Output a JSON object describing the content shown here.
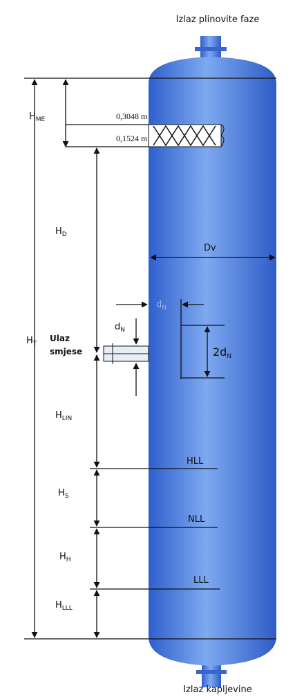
{
  "header": {
    "top_outlet": "Izlaz plinovite faze",
    "bottom_outlet": "Izlaz kapljevine"
  },
  "labels": {
    "h_me": {
      "main": "H",
      "sub": "ME"
    },
    "mesh_top": "0,3048 m",
    "mesh_bottom": "0,1524 m",
    "h_d": {
      "main": "H",
      "sub": "D"
    },
    "dv": "Dv",
    "dn_top": {
      "main": "d",
      "sub": "N"
    },
    "dn": {
      "main": "d",
      "sub": "N"
    },
    "two_dn": {
      "main": "2d",
      "sub": "N"
    },
    "h_t": {
      "main": "H",
      "sub": "T"
    },
    "inlet": [
      "Ulaz",
      "smjese"
    ],
    "h_lin": {
      "main": "H",
      "sub": "LIN"
    },
    "hll": "HLL",
    "h_s": {
      "main": "H",
      "sub": "S"
    },
    "nll": "NLL",
    "h_h": {
      "main": "H",
      "sub": "H"
    },
    "lll": "LLL",
    "h_lll": {
      "main": "H",
      "sub": "LLL"
    }
  }
}
